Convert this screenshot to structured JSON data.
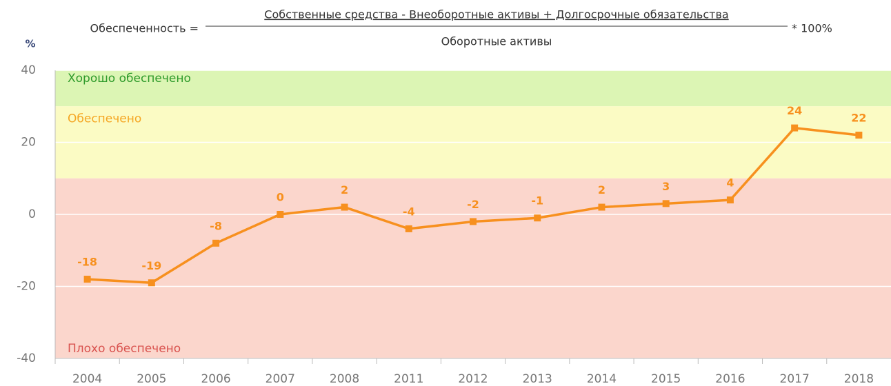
{
  "chart_data": {
    "type": "line",
    "formula": {
      "lhs": "Обеспеченность =",
      "numerator": "Собственные средства - Внеоборотные активы + Долгосрочные обязательства",
      "denominator": "Оборотные активы",
      "multiplier": "* 100%"
    },
    "y_unit": "%",
    "categories": [
      "2004",
      "2005",
      "2006",
      "2007",
      "2008",
      "2011",
      "2012",
      "2013",
      "2014",
      "2015",
      "2016",
      "2017",
      "2018"
    ],
    "series": [
      {
        "name": "Обеспеченность",
        "color": "#f7901e",
        "values": [
          -18,
          -19,
          -8,
          0,
          2,
          -4,
          -2,
          -1,
          2,
          3,
          4,
          24,
          22
        ]
      }
    ],
    "zones": [
      {
        "label": "Хорошо обеспечено",
        "from": 30,
        "to": 40,
        "color": "#dcf5b4",
        "label_color": "#2e9a2a"
      },
      {
        "label": "Обеспечено",
        "from": 10,
        "to": 30,
        "color": "#fbfbc4",
        "label_color": "#f5a623"
      },
      {
        "label": "Плохо обеспечено",
        "from": -40,
        "to": 10,
        "color": "#fbd6cc",
        "label_color": "#d9534f"
      }
    ],
    "ylim": [
      -40,
      40
    ],
    "yticks": [
      -40,
      -20,
      0,
      20,
      40
    ],
    "grid": true
  }
}
